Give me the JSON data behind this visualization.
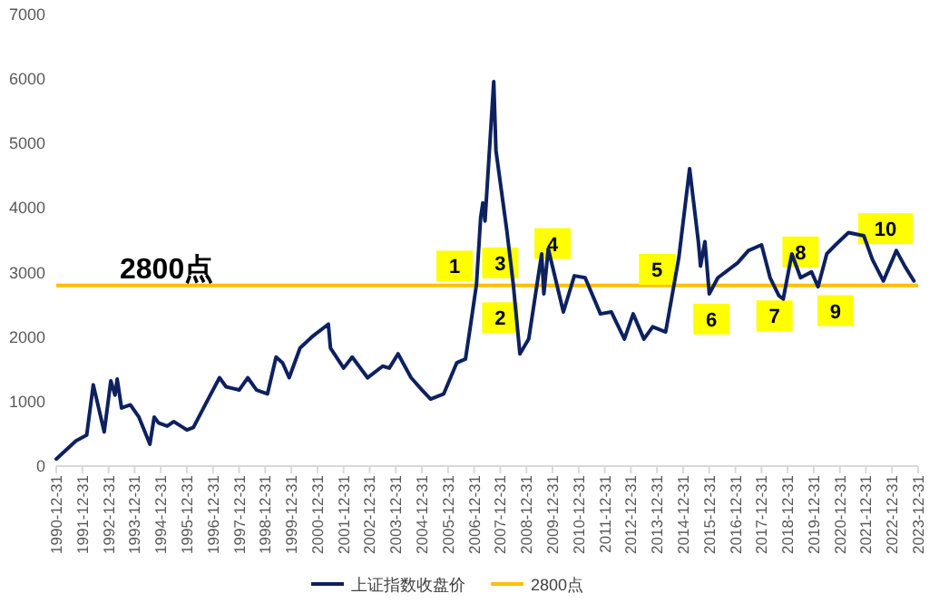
{
  "chart_data": {
    "type": "line",
    "x": [
      "1990-12-31",
      "1991-10",
      "1992-03",
      "1992-06",
      "1992-11",
      "1993-02",
      "1993-04",
      "1993-05",
      "1993-07",
      "1993-11",
      "1994-03",
      "1994-08",
      "1994-10",
      "1994-12",
      "1995-04",
      "1995-07",
      "1996-01",
      "1996-04",
      "1996-10",
      "1997-04",
      "1997-07",
      "1998-01",
      "1998-05",
      "1998-09",
      "1999-02",
      "1999-06",
      "1999-09",
      "1999-12",
      "2000-05",
      "2000-11",
      "2001-06",
      "2001-07",
      "2002-01",
      "2002-05",
      "2002-12",
      "2003-07",
      "2003-10",
      "2004-02",
      "2004-08",
      "2005-01",
      "2005-05",
      "2005-11",
      "2006-05",
      "2006-09",
      "2006-11",
      "2007-02",
      "2007-04",
      "2007-05",
      "2007-06",
      "2007-10",
      "2007-11",
      "2008-04",
      "2008-07",
      "2008-10",
      "2009-02",
      "2009-08",
      "2009-09",
      "2009-11",
      "2010-06",
      "2010-11",
      "2011-04",
      "2011-11",
      "2012-04",
      "2012-10",
      "2013-02",
      "2013-07",
      "2013-11",
      "2014-05",
      "2014-11",
      "2015-04",
      "2015-08",
      "2015-09",
      "2015-11",
      "2016-01",
      "2016-05",
      "2017-02",
      "2017-07",
      "2018-01",
      "2018-05",
      "2018-09",
      "2018-11",
      "2019-03",
      "2019-07",
      "2019-12",
      "2020-03",
      "2020-07",
      "2020-11",
      "2021-05",
      "2021-12",
      "2022-04",
      "2022-09",
      "2023-03",
      "2023-07",
      "2023-11"
    ],
    "series": [
      {
        "name": "上证指数收盘价",
        "color": "#0d2160",
        "values": [
          110,
          390,
          480,
          1260,
          530,
          1320,
          1100,
          1350,
          900,
          950,
          760,
          340,
          760,
          670,
          620,
          690,
          560,
          600,
          990,
          1370,
          1230,
          1180,
          1370,
          1180,
          1120,
          1690,
          1600,
          1370,
          1830,
          2020,
          2200,
          1830,
          1520,
          1690,
          1370,
          1550,
          1520,
          1740,
          1370,
          1180,
          1040,
          1120,
          1600,
          1660,
          2110,
          2810,
          3850,
          4080,
          3800,
          5960,
          4890,
          3650,
          2810,
          1740,
          1970,
          3290,
          2670,
          3370,
          2390,
          2950,
          2920,
          2360,
          2390,
          1970,
          2360,
          1970,
          2160,
          2080,
          3230,
          4610,
          3480,
          3100,
          3480,
          2670,
          2920,
          3150,
          3340,
          3430,
          2920,
          2640,
          2590,
          3290,
          2920,
          3010,
          2780,
          3290,
          3430,
          3620,
          3570,
          3200,
          2870,
          3340,
          3090,
          2870
        ]
      }
    ],
    "ref_lines": [
      {
        "axis": "y",
        "value": 2800,
        "label": "2800点",
        "color": "#ffc000"
      }
    ],
    "annotations": [
      {
        "text": "1",
        "x": "2006-04",
        "y": 3100
      },
      {
        "text": "2",
        "x": "2008-01",
        "y": 2300
      },
      {
        "text": "3",
        "x": "2008-01",
        "y": 3150
      },
      {
        "text": "4",
        "x": "2010-01",
        "y": 3450
      },
      {
        "text": "5",
        "x": "2014-01",
        "y": 3050
      },
      {
        "text": "6",
        "x": "2016-02",
        "y": 2280
      },
      {
        "text": "7",
        "x": "2018-07",
        "y": 2330
      },
      {
        "text": "8",
        "x": "2019-07",
        "y": 3320
      },
      {
        "text": "9",
        "x": "2020-11",
        "y": 2410
      },
      {
        "text": "10",
        "x": "2022-10",
        "y": 3680
      }
    ],
    "xlim": [
      "1990-12-31",
      "2023-12-31"
    ],
    "xticks": [
      "1990-12-31",
      "1991-12-31",
      "1992-12-31",
      "1993-12-31",
      "1994-12-31",
      "1995-12-31",
      "1996-12-31",
      "1997-12-31",
      "1998-12-31",
      "1999-12-31",
      "2000-12-31",
      "2001-12-31",
      "2002-12-31",
      "2003-12-31",
      "2004-12-31",
      "2005-12-31",
      "2006-12-31",
      "2007-12-31",
      "2008-12-31",
      "2009-12-31",
      "2010-12-31",
      "2011-12-31",
      "2012-12-31",
      "2013-12-31",
      "2014-12-31",
      "2015-12-31",
      "2016-12-31",
      "2017-12-31",
      "2018-12-31",
      "2019-12-31",
      "2020-12-31",
      "2021-12-31",
      "2022-12-31",
      "2023-12-31"
    ],
    "ylim": [
      0,
      7000
    ],
    "yticks": [
      0,
      1000,
      2000,
      3000,
      4000,
      5000,
      6000,
      7000
    ],
    "grid": false,
    "legend": "bottom"
  }
}
